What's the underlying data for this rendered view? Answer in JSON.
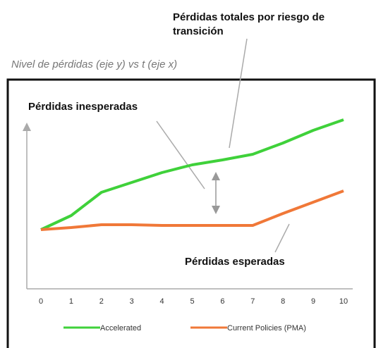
{
  "chart_data": {
    "type": "line",
    "title": "Pérdidas totales por riesgo de transición",
    "subtitle": "Nivel de pérdidas (eje y) vs t (eje x)",
    "annotations": [
      "Pérdidas inesperadas",
      "Pérdidas esperadas"
    ],
    "x": [
      0,
      1,
      2,
      3,
      4,
      5,
      6,
      7,
      8,
      9,
      10
    ],
    "xlim": [
      0,
      10
    ],
    "xticks": [
      0,
      1,
      2,
      3,
      4,
      5,
      6,
      7,
      8,
      9,
      10
    ],
    "ylim": [
      0,
      140
    ],
    "series": [
      {
        "name": "Accelerated",
        "color": "#3fd13a",
        "values": [
          42,
          52,
          68.5,
          75.5,
          82.5,
          88,
          91.5,
          95.5,
          103.5,
          112.5,
          120
        ]
      },
      {
        "name": "Current Policies (PMA)",
        "color": "#f07838",
        "values": [
          42,
          43.5,
          45.5,
          45.5,
          45,
          45,
          45,
          45,
          53.5,
          61.5,
          69.5
        ]
      }
    ]
  }
}
